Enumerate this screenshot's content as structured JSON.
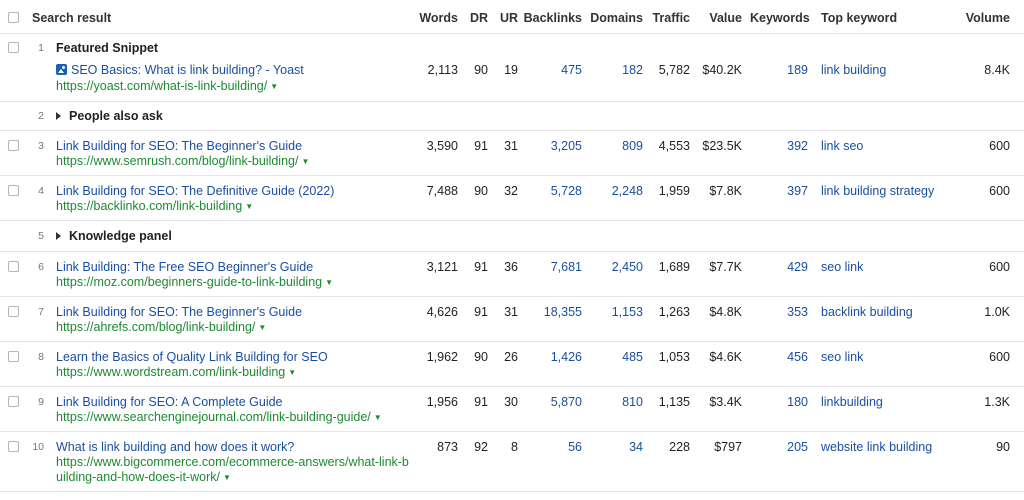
{
  "headers": {
    "search_result": "Search result",
    "words": "Words",
    "dr": "DR",
    "ur": "UR",
    "backlinks": "Backlinks",
    "domains": "Domains",
    "traffic": "Traffic",
    "value": "Value",
    "keywords": "Keywords",
    "top_keyword": "Top keyword",
    "volume": "Volume"
  },
  "rows": [
    {
      "n": "1",
      "section": "Featured Snippet",
      "title": "SEO Basics: What is link building? - Yoast",
      "url": "https://yoast.com/what-is-link-building/",
      "words": "2,113",
      "dr": "90",
      "ur": "19",
      "backlinks": "475",
      "domains": "182",
      "traffic": "5,782",
      "value": "$40.2K",
      "keywords": "189",
      "top_keyword": "link building",
      "volume": "8.4K"
    },
    {
      "n": "2",
      "section": "People also ask"
    },
    {
      "n": "3",
      "title": "Link Building for SEO: The Beginner's Guide",
      "url": "https://www.semrush.com/blog/link-building/",
      "words": "3,590",
      "dr": "91",
      "ur": "31",
      "backlinks": "3,205",
      "domains": "809",
      "traffic": "4,553",
      "value": "$23.5K",
      "keywords": "392",
      "top_keyword": "link seo",
      "volume": "600"
    },
    {
      "n": "4",
      "title": "Link Building for SEO: The Definitive Guide (2022)",
      "url": "https://backlinko.com/link-building",
      "words": "7,488",
      "dr": "90",
      "ur": "32",
      "backlinks": "5,728",
      "domains": "2,248",
      "traffic": "1,959",
      "value": "$7.8K",
      "keywords": "397",
      "top_keyword": "link building strategy",
      "volume": "600"
    },
    {
      "n": "5",
      "section": "Knowledge panel"
    },
    {
      "n": "6",
      "title": "Link Building: The Free SEO Beginner's Guide",
      "url": "https://moz.com/beginners-guide-to-link-building",
      "words": "3,121",
      "dr": "91",
      "ur": "36",
      "backlinks": "7,681",
      "domains": "2,450",
      "traffic": "1,689",
      "value": "$7.7K",
      "keywords": "429",
      "top_keyword": "seo link",
      "volume": "600"
    },
    {
      "n": "7",
      "title": "Link Building for SEO: The Beginner's Guide",
      "url": "https://ahrefs.com/blog/link-building/",
      "words": "4,626",
      "dr": "91",
      "ur": "31",
      "backlinks": "18,355",
      "domains": "1,153",
      "traffic": "1,263",
      "value": "$4.8K",
      "keywords": "353",
      "top_keyword": "backlink building",
      "volume": "1.0K"
    },
    {
      "n": "8",
      "title": "Learn the Basics of Quality Link Building for SEO",
      "url": "https://www.wordstream.com/link-building",
      "words": "1,962",
      "dr": "90",
      "ur": "26",
      "backlinks": "1,426",
      "domains": "485",
      "traffic": "1,053",
      "value": "$4.6K",
      "keywords": "456",
      "top_keyword": "seo link",
      "volume": "600"
    },
    {
      "n": "9",
      "title": "Link Building for SEO: A Complete Guide",
      "url": "https://www.searchenginejournal.com/link-building-guide/",
      "words": "1,956",
      "dr": "91",
      "ur": "30",
      "backlinks": "5,870",
      "domains": "810",
      "traffic": "1,135",
      "value": "$3.4K",
      "keywords": "180",
      "top_keyword": "linkbuilding",
      "volume": "1.3K"
    },
    {
      "n": "10",
      "title": "What is link building and how does it work?",
      "url_line1": "https://www.bigcommerce.com/ecommerce-answers/what-link-b",
      "url_line2": "uilding-and-how-does-it-work/",
      "words": "873",
      "dr": "92",
      "ur": "8",
      "backlinks": "56",
      "domains": "34",
      "traffic": "228",
      "value": "$797",
      "keywords": "205",
      "top_keyword": "website link building",
      "volume": "90"
    }
  ]
}
